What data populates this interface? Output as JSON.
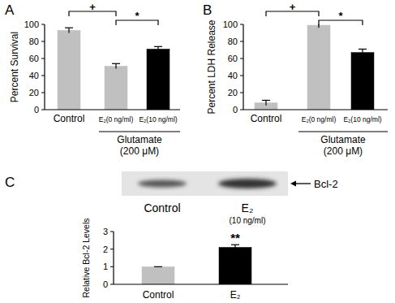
{
  "chart_data": [
    {
      "type": "bar",
      "title": "A",
      "y_label": "Percent Survival",
      "categories": [
        "Control",
        "E₂(0 ng/ml)",
        "E₂(10 ng/ml)"
      ],
      "values": [
        93,
        51,
        71
      ],
      "errors": [
        3,
        3,
        3
      ],
      "colors": [
        "#c0c0c0",
        "#c0c0c0",
        "#000000"
      ],
      "ylim": [
        0,
        100
      ],
      "yticks": [
        0,
        20,
        40,
        60,
        80,
        100
      ],
      "grid": false,
      "group_label": [
        "Glutamate",
        "(200 μM)"
      ],
      "annotations": [
        {
          "text": "+",
          "from": 0,
          "to": 1
        },
        {
          "text": "*",
          "from": 1,
          "to": 2
        }
      ]
    },
    {
      "type": "bar",
      "title": "B",
      "y_label": "Percent LDH Release",
      "categories": [
        "Control",
        "E₂(0 ng/ml)",
        "E₂(10 ng/ml)"
      ],
      "values": [
        8,
        99,
        67
      ],
      "errors": [
        3,
        3,
        4
      ],
      "colors": [
        "#c0c0c0",
        "#c0c0c0",
        "#000000"
      ],
      "ylim": [
        0,
        100
      ],
      "yticks": [
        0,
        20,
        40,
        60,
        80,
        100
      ],
      "grid": false,
      "group_label": [
        "Glutamate",
        "(200 μM)"
      ],
      "annotations": [
        {
          "text": "+",
          "from": 0,
          "to": 1
        },
        {
          "text": "*",
          "from": 1,
          "to": 2
        }
      ]
    },
    {
      "type": "bar",
      "title": "C",
      "y_label": "Relative Bcl-2 Levels",
      "categories": [
        "Control",
        "E₂"
      ],
      "values": [
        1,
        2.1
      ],
      "errors": [
        0,
        0.15
      ],
      "colors": [
        "#c0c0c0",
        "#000000"
      ],
      "ylim": [
        0,
        3
      ],
      "yticks": [
        0,
        1,
        2,
        3
      ],
      "grid": false,
      "annotations": [
        {
          "text": "**",
          "at": 1
        }
      ],
      "blot": {
        "band_label": "Bcl-2",
        "lanes": [
          [
            "Control"
          ],
          [
            "E₂",
            "(10 ng/ml)"
          ]
        ]
      }
    }
  ]
}
